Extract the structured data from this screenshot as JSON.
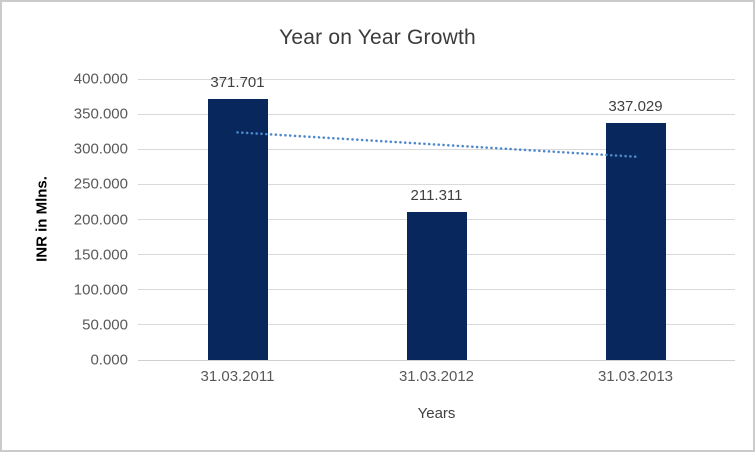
{
  "chart_data": {
    "type": "bar",
    "title": "Year on Year Growth",
    "ylabel": "INR in Mlns.",
    "xlabel": "Years",
    "categories": [
      "31.03.2011",
      "31.03.2012",
      "31.03.2013"
    ],
    "values": [
      371.701,
      211.311,
      337.029
    ],
    "value_labels": [
      "371.701",
      "211.311",
      "337.029"
    ],
    "ylim": [
      0,
      400
    ],
    "ytick_step": 50,
    "ytick_labels": [
      "0.000",
      "50.000",
      "100.000",
      "150.000",
      "200.000",
      "250.000",
      "300.000",
      "350.000",
      "400.000"
    ],
    "grid": true,
    "legend": "none",
    "colors": {
      "bar": "#08285d",
      "trendline": "#4e88cb",
      "gridline": "#d9d9d9",
      "title_text": "#3b3b3b",
      "tick_text": "#595959",
      "label_text": "#404040"
    },
    "trendline": {
      "type": "linear",
      "style": "dotted"
    }
  }
}
